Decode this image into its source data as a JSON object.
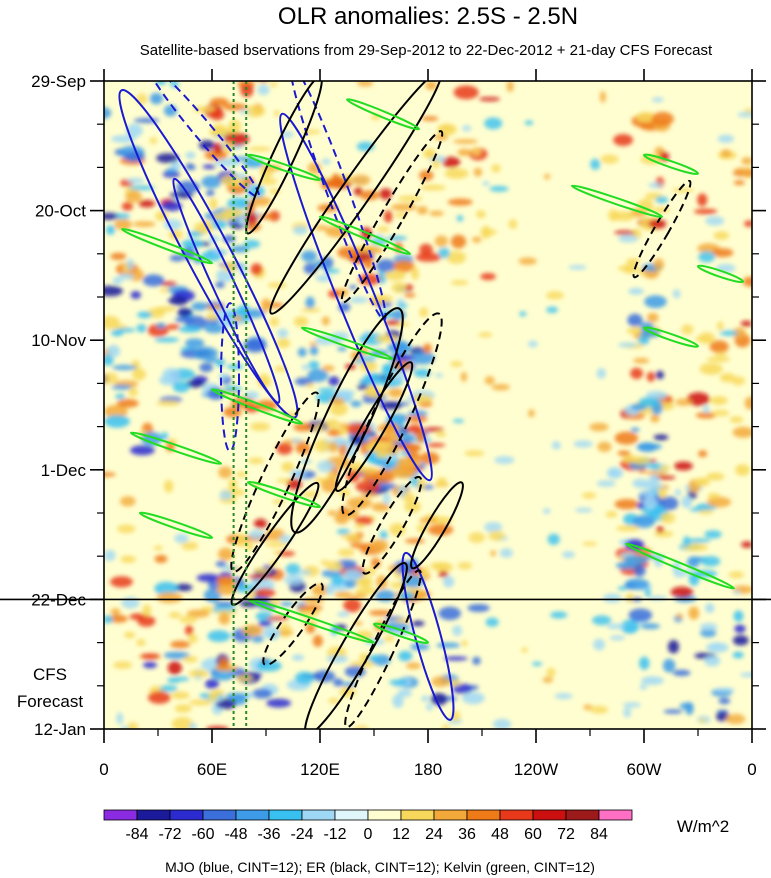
{
  "chart_data": {
    "type": "heatmap",
    "title": "OLR anomalies: 2.5S - 2.5N",
    "subtitle": "Satellite-based bservations from 29-Sep-2012 to 22-Dec-2012 + 21-day CFS Forecast",
    "x_ticks": [
      {
        "lon": 0,
        "label": "0"
      },
      {
        "lon": 60,
        "label": "60E"
      },
      {
        "lon": 120,
        "label": "120E"
      },
      {
        "lon": 180,
        "label": "180"
      },
      {
        "lon": 240,
        "label": "120W"
      },
      {
        "lon": 300,
        "label": "60W"
      },
      {
        "lon": 360,
        "label": "0"
      }
    ],
    "y_ticks": [
      {
        "day": 0,
        "label": "29-Sep"
      },
      {
        "day": 21,
        "label": "20-Oct"
      },
      {
        "day": 42,
        "label": "10-Nov"
      },
      {
        "day": 63,
        "label": "1-Dec"
      },
      {
        "day": 84,
        "label": "22-Dec"
      },
      {
        "day": 105,
        "label": "12-Jan"
      }
    ],
    "xlim": [
      0,
      360
    ],
    "ylim_days": [
      0,
      105
    ],
    "forecast_start_day": 84,
    "forecast_label_line1": "CFS",
    "forecast_label_line2": "Forecast",
    "reference_lines_lon": [
      72,
      79
    ],
    "colorbar": {
      "unit_label": "W/m^2",
      "labels": [
        "-84",
        "-72",
        "-60",
        "-48",
        "-36",
        "-24",
        "-12",
        "0",
        "12",
        "24",
        "36",
        "48",
        "60",
        "72",
        "84"
      ],
      "colors": [
        "#8a2be2",
        "#1a1a9a",
        "#2b2bd0",
        "#3b6fdc",
        "#3d9be8",
        "#38c0f0",
        "#9fd8f5",
        "#dff6fa",
        "#fffed0",
        "#f7d85a",
        "#f3a93a",
        "#ee7a18",
        "#e83a1a",
        "#cc1010",
        "#9c1a1a",
        "#ff6fc3"
      ]
    },
    "contour_notes": [
      {
        "name": "MJO",
        "color": "#1a1ad0"
      },
      {
        "name": "ER",
        "color": "#000000"
      },
      {
        "name": "Kelvin",
        "color": "#22dd22"
      }
    ],
    "footnote": "MJO (blue, CINT=12); ER (black, CINT=12); Kelvin (green, CINT=12)"
  }
}
